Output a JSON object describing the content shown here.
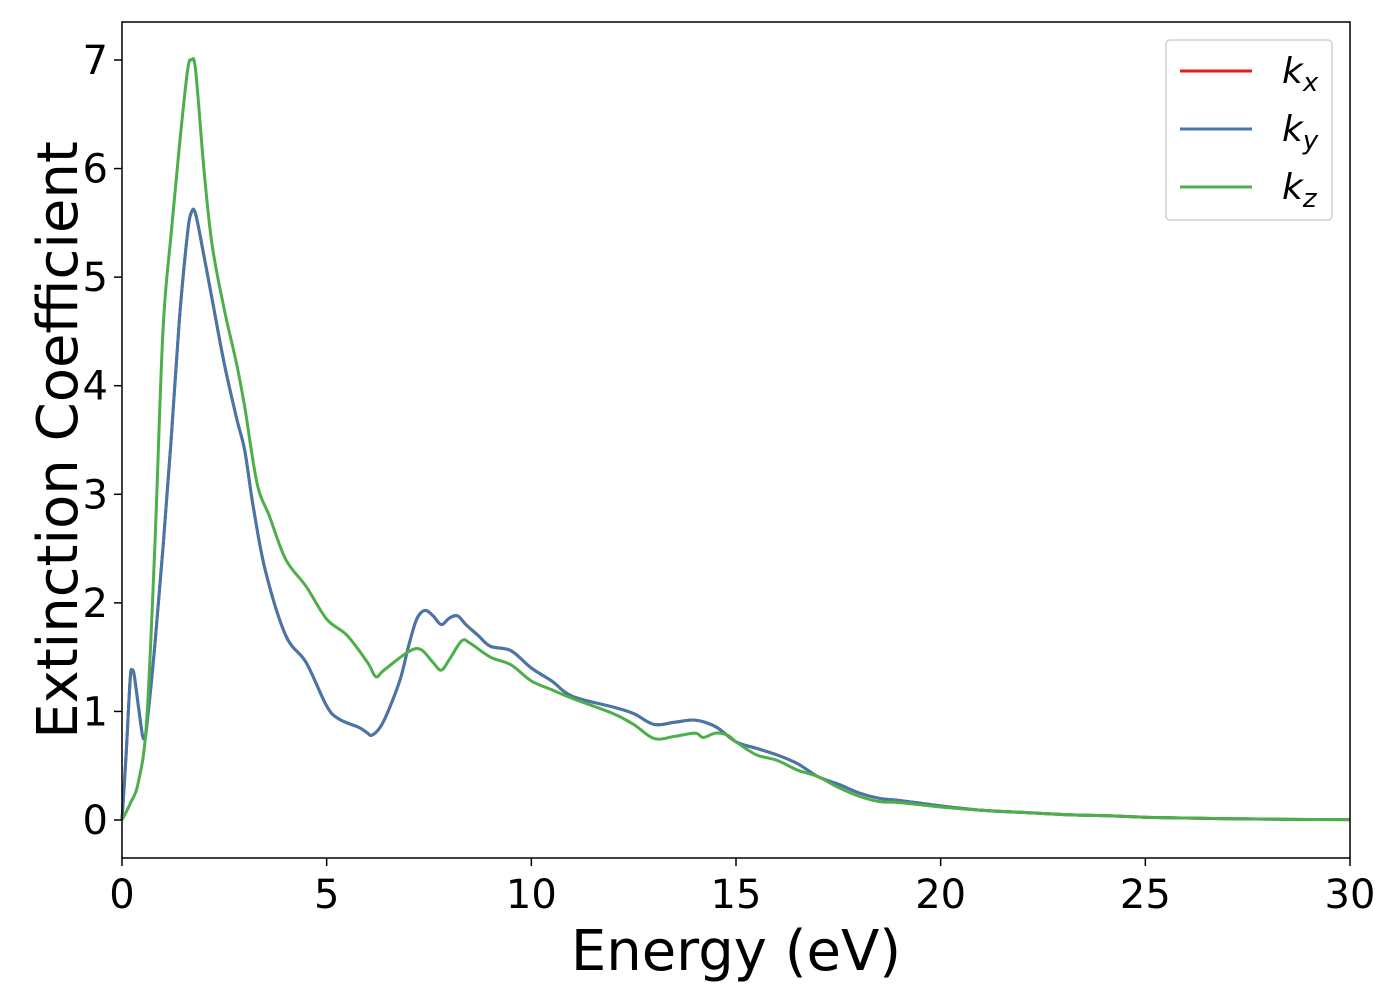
{
  "chart_data": {
    "type": "line",
    "title": "",
    "xlabel": "Energy (eV)",
    "ylabel": "Extinction Coefficient",
    "xlim": [
      0,
      30
    ],
    "ylim": [
      -0.35,
      7.35
    ],
    "x_ticks": [
      0,
      5,
      10,
      15,
      20,
      25,
      30
    ],
    "y_ticks": [
      0,
      1,
      2,
      3,
      4,
      5,
      6,
      7
    ],
    "grid": false,
    "legend_position": "top-right",
    "series": [
      {
        "name": "k",
        "subscript": "x",
        "color": "#e41a1c",
        "points": [
          [
            0,
            0
          ],
          [
            0.1,
            0.6
          ],
          [
            0.2,
            1.3
          ],
          [
            0.25,
            1.38
          ],
          [
            0.3,
            1.33
          ],
          [
            0.4,
            1.05
          ],
          [
            0.5,
            0.78
          ],
          [
            0.55,
            0.76
          ],
          [
            0.6,
            0.85
          ],
          [
            0.8,
            1.6
          ],
          [
            1.0,
            2.5
          ],
          [
            1.2,
            3.5
          ],
          [
            1.4,
            4.6
          ],
          [
            1.6,
            5.4
          ],
          [
            1.7,
            5.6
          ],
          [
            1.8,
            5.58
          ],
          [
            2.0,
            5.2
          ],
          [
            2.2,
            4.8
          ],
          [
            2.5,
            4.2
          ],
          [
            2.8,
            3.7
          ],
          [
            3.0,
            3.4
          ],
          [
            3.2,
            2.9
          ],
          [
            3.5,
            2.3
          ],
          [
            4.0,
            1.7
          ],
          [
            4.5,
            1.45
          ],
          [
            5.0,
            1.05
          ],
          [
            5.3,
            0.93
          ],
          [
            5.8,
            0.85
          ],
          [
            6.0,
            0.8
          ],
          [
            6.1,
            0.78
          ],
          [
            6.3,
            0.85
          ],
          [
            6.5,
            1.0
          ],
          [
            6.8,
            1.3
          ],
          [
            7.0,
            1.6
          ],
          [
            7.2,
            1.85
          ],
          [
            7.4,
            1.93
          ],
          [
            7.6,
            1.88
          ],
          [
            7.8,
            1.8
          ],
          [
            8.0,
            1.86
          ],
          [
            8.2,
            1.88
          ],
          [
            8.4,
            1.8
          ],
          [
            8.7,
            1.7
          ],
          [
            9.0,
            1.6
          ],
          [
            9.5,
            1.56
          ],
          [
            10.0,
            1.4
          ],
          [
            10.5,
            1.28
          ],
          [
            11.0,
            1.14
          ],
          [
            12.0,
            1.04
          ],
          [
            12.5,
            0.98
          ],
          [
            13.0,
            0.88
          ],
          [
            13.5,
            0.9
          ],
          [
            14.0,
            0.92
          ],
          [
            14.5,
            0.86
          ],
          [
            15.0,
            0.72
          ],
          [
            15.5,
            0.66
          ],
          [
            16.0,
            0.6
          ],
          [
            16.5,
            0.52
          ],
          [
            17.0,
            0.4
          ],
          [
            17.5,
            0.33
          ],
          [
            18.0,
            0.25
          ],
          [
            18.5,
            0.2
          ],
          [
            19.0,
            0.18
          ],
          [
            20.0,
            0.13
          ],
          [
            21.0,
            0.09
          ],
          [
            22.0,
            0.07
          ],
          [
            23.0,
            0.05
          ],
          [
            24.0,
            0.04
          ],
          [
            25.0,
            0.025
          ],
          [
            26.0,
            0.018
          ],
          [
            27.0,
            0.012
          ],
          [
            28.0,
            0.008
          ],
          [
            29.0,
            0.005
          ],
          [
            30.0,
            0.003
          ]
        ]
      },
      {
        "name": "k",
        "subscript": "y",
        "color": "#4477aa",
        "points": [
          [
            0,
            0
          ],
          [
            0.1,
            0.6
          ],
          [
            0.2,
            1.3
          ],
          [
            0.25,
            1.38
          ],
          [
            0.3,
            1.33
          ],
          [
            0.4,
            1.05
          ],
          [
            0.5,
            0.78
          ],
          [
            0.55,
            0.76
          ],
          [
            0.6,
            0.85
          ],
          [
            0.8,
            1.6
          ],
          [
            1.0,
            2.5
          ],
          [
            1.2,
            3.5
          ],
          [
            1.4,
            4.6
          ],
          [
            1.6,
            5.4
          ],
          [
            1.7,
            5.6
          ],
          [
            1.8,
            5.58
          ],
          [
            2.0,
            5.2
          ],
          [
            2.2,
            4.8
          ],
          [
            2.5,
            4.2
          ],
          [
            2.8,
            3.7
          ],
          [
            3.0,
            3.4
          ],
          [
            3.2,
            2.9
          ],
          [
            3.5,
            2.3
          ],
          [
            4.0,
            1.7
          ],
          [
            4.5,
            1.45
          ],
          [
            5.0,
            1.05
          ],
          [
            5.3,
            0.93
          ],
          [
            5.8,
            0.85
          ],
          [
            6.0,
            0.8
          ],
          [
            6.1,
            0.78
          ],
          [
            6.3,
            0.85
          ],
          [
            6.5,
            1.0
          ],
          [
            6.8,
            1.3
          ],
          [
            7.0,
            1.6
          ],
          [
            7.2,
            1.85
          ],
          [
            7.4,
            1.93
          ],
          [
            7.6,
            1.88
          ],
          [
            7.8,
            1.8
          ],
          [
            8.0,
            1.86
          ],
          [
            8.2,
            1.88
          ],
          [
            8.4,
            1.8
          ],
          [
            8.7,
            1.7
          ],
          [
            9.0,
            1.6
          ],
          [
            9.5,
            1.56
          ],
          [
            10.0,
            1.4
          ],
          [
            10.5,
            1.28
          ],
          [
            11.0,
            1.14
          ],
          [
            12.0,
            1.04
          ],
          [
            12.5,
            0.98
          ],
          [
            13.0,
            0.88
          ],
          [
            13.5,
            0.9
          ],
          [
            14.0,
            0.92
          ],
          [
            14.5,
            0.86
          ],
          [
            15.0,
            0.72
          ],
          [
            15.5,
            0.66
          ],
          [
            16.0,
            0.6
          ],
          [
            16.5,
            0.52
          ],
          [
            17.0,
            0.4
          ],
          [
            17.5,
            0.33
          ],
          [
            18.0,
            0.25
          ],
          [
            18.5,
            0.2
          ],
          [
            19.0,
            0.18
          ],
          [
            20.0,
            0.13
          ],
          [
            21.0,
            0.09
          ],
          [
            22.0,
            0.07
          ],
          [
            23.0,
            0.05
          ],
          [
            24.0,
            0.04
          ],
          [
            25.0,
            0.025
          ],
          [
            26.0,
            0.018
          ],
          [
            27.0,
            0.012
          ],
          [
            28.0,
            0.008
          ],
          [
            29.0,
            0.005
          ],
          [
            30.0,
            0.003
          ]
        ]
      },
      {
        "name": "k",
        "subscript": "z",
        "color": "#4daf4a",
        "points": [
          [
            0,
            0
          ],
          [
            0.2,
            0.15
          ],
          [
            0.4,
            0.35
          ],
          [
            0.6,
            0.9
          ],
          [
            0.8,
            2.5
          ],
          [
            1.0,
            4.5
          ],
          [
            1.2,
            5.4
          ],
          [
            1.4,
            6.2
          ],
          [
            1.6,
            6.9
          ],
          [
            1.7,
            7.0
          ],
          [
            1.8,
            6.9
          ],
          [
            2.0,
            6.0
          ],
          [
            2.2,
            5.3
          ],
          [
            2.5,
            4.7
          ],
          [
            2.8,
            4.2
          ],
          [
            3.0,
            3.8
          ],
          [
            3.3,
            3.1
          ],
          [
            3.6,
            2.8
          ],
          [
            4.0,
            2.4
          ],
          [
            4.5,
            2.15
          ],
          [
            5.0,
            1.85
          ],
          [
            5.5,
            1.7
          ],
          [
            6.0,
            1.45
          ],
          [
            6.2,
            1.32
          ],
          [
            6.4,
            1.38
          ],
          [
            7.0,
            1.55
          ],
          [
            7.3,
            1.57
          ],
          [
            7.6,
            1.45
          ],
          [
            7.8,
            1.38
          ],
          [
            8.0,
            1.48
          ],
          [
            8.3,
            1.65
          ],
          [
            8.5,
            1.63
          ],
          [
            9.0,
            1.5
          ],
          [
            9.5,
            1.43
          ],
          [
            10.0,
            1.28
          ],
          [
            10.5,
            1.2
          ],
          [
            11.0,
            1.12
          ],
          [
            12.0,
            0.98
          ],
          [
            12.5,
            0.88
          ],
          [
            13.0,
            0.75
          ],
          [
            13.5,
            0.77
          ],
          [
            14.0,
            0.8
          ],
          [
            14.2,
            0.76
          ],
          [
            14.5,
            0.8
          ],
          [
            14.8,
            0.78
          ],
          [
            15.0,
            0.72
          ],
          [
            15.5,
            0.6
          ],
          [
            16.0,
            0.55
          ],
          [
            16.5,
            0.46
          ],
          [
            17.0,
            0.4
          ],
          [
            17.5,
            0.3
          ],
          [
            18.0,
            0.22
          ],
          [
            18.5,
            0.17
          ],
          [
            19.0,
            0.16
          ],
          [
            20.0,
            0.12
          ],
          [
            21.0,
            0.09
          ],
          [
            22.0,
            0.07
          ],
          [
            23.0,
            0.05
          ],
          [
            24.0,
            0.04
          ],
          [
            25.0,
            0.025
          ],
          [
            26.0,
            0.018
          ],
          [
            27.0,
            0.012
          ],
          [
            28.0,
            0.008
          ],
          [
            29.0,
            0.005
          ],
          [
            30.0,
            0.003
          ]
        ]
      }
    ]
  }
}
